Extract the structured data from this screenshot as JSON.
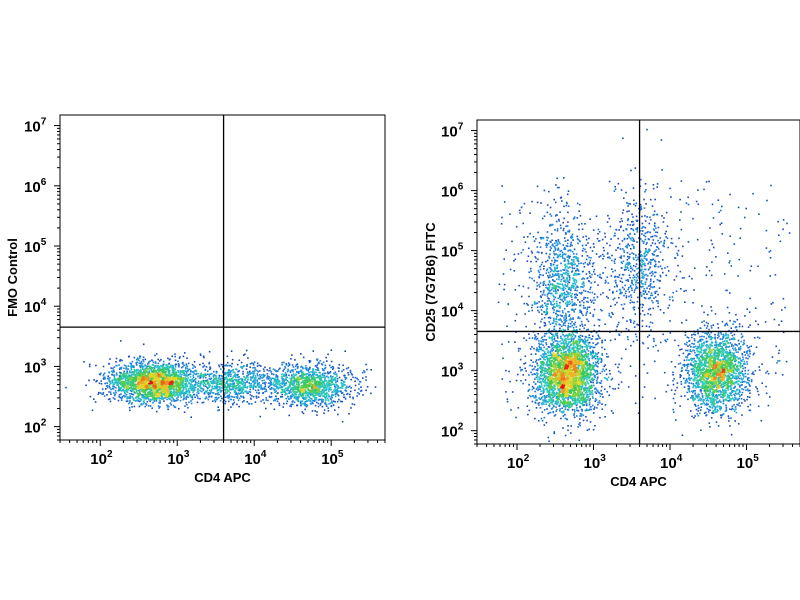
{
  "chart_data": [
    {
      "type": "scatter",
      "style": "density-dot-plot",
      "xlabel": "CD4 APC",
      "ylabel": "FMO Control",
      "x_scale": "log",
      "y_scale": "log",
      "xlim": [
        30,
        500000
      ],
      "ylim": [
        60,
        15000000
      ],
      "x_ticks": [
        {
          "base": "10",
          "exp": "2",
          "value": 100
        },
        {
          "base": "10",
          "exp": "3",
          "value": 1000
        },
        {
          "base": "10",
          "exp": "4",
          "value": 10000
        },
        {
          "base": "10",
          "exp": "5",
          "value": 100000
        }
      ],
      "y_ticks": [
        {
          "base": "10",
          "exp": "2",
          "value": 100
        },
        {
          "base": "10",
          "exp": "3",
          "value": 1000
        },
        {
          "base": "10",
          "exp": "4",
          "value": 10000
        },
        {
          "base": "10",
          "exp": "5",
          "value": 100000
        },
        {
          "base": "10",
          "exp": "6",
          "value": 1000000
        },
        {
          "base": "10",
          "exp": "7",
          "value": 10000000
        }
      ],
      "gate": {
        "x": 4000,
        "y": 4500
      },
      "populations": [
        {
          "x": 500,
          "y": 550,
          "count": 2200
        },
        {
          "x": 50000,
          "y": 500,
          "count": 1200
        },
        {
          "x": 5000,
          "y": 550,
          "count": 700
        }
      ]
    },
    {
      "type": "scatter",
      "style": "density-dot-plot",
      "xlabel": "CD4 APC",
      "ylabel": "CD25 (7G7B6) FITC",
      "x_scale": "log",
      "y_scale": "log",
      "xlim": [
        30,
        500000
      ],
      "ylim": [
        60,
        15000000
      ],
      "x_ticks": [
        {
          "base": "10",
          "exp": "2",
          "value": 100
        },
        {
          "base": "10",
          "exp": "3",
          "value": 1000
        },
        {
          "base": "10",
          "exp": "4",
          "value": 10000
        },
        {
          "base": "10",
          "exp": "5",
          "value": 100000
        }
      ],
      "y_ticks": [
        {
          "base": "10",
          "exp": "2",
          "value": 100
        },
        {
          "base": "10",
          "exp": "3",
          "value": 1000
        },
        {
          "base": "10",
          "exp": "4",
          "value": 10000
        },
        {
          "base": "10",
          "exp": "5",
          "value": 100000
        },
        {
          "base": "10",
          "exp": "6",
          "value": 1000000
        },
        {
          "base": "10",
          "exp": "7",
          "value": 10000000
        }
      ],
      "gate": {
        "x": 4000,
        "y": 4500
      },
      "populations": [
        {
          "x": 450,
          "y": 900,
          "count": 2600
        },
        {
          "x": 40000,
          "y": 1000,
          "count": 1900
        },
        {
          "x": 400,
          "y": 30000,
          "count": 900
        },
        {
          "x": 4000,
          "y": 60000,
          "count": 600
        }
      ]
    }
  ]
}
